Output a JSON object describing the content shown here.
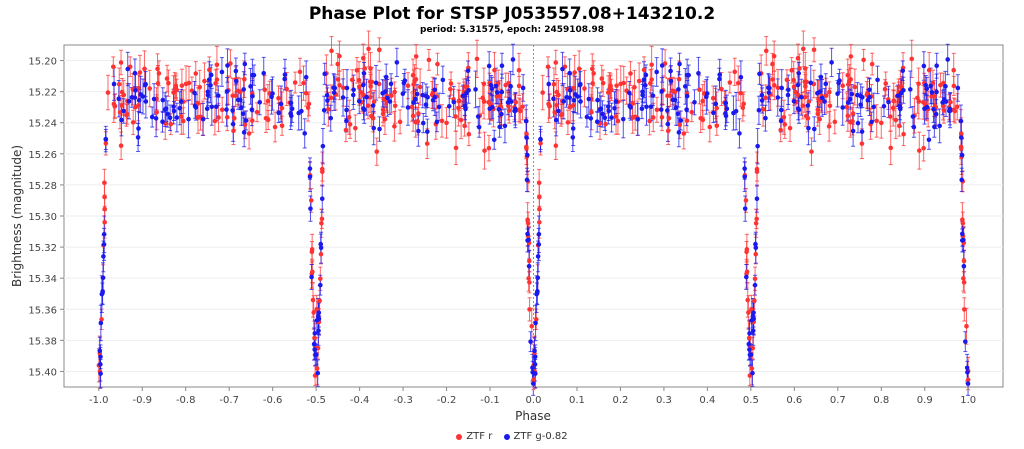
{
  "chart_data": {
    "type": "scatter",
    "title": "Phase Plot for STSP J053557.08+143210.2",
    "subtitle": "period: 5.31575, epoch: 2459108.98",
    "xlabel": "Phase",
    "ylabel": "Brightness (magnitude)",
    "xlim": [
      -1.08,
      1.08
    ],
    "ylim": [
      15.41,
      15.19
    ],
    "y_inverted": true,
    "x_ticks": [
      "-1.0",
      "-0.9",
      "-0.8",
      "-0.7",
      "-0.6",
      "-0.5",
      "-0.4",
      "-0.3",
      "-0.2",
      "-0.1",
      "0.0",
      "0.1",
      "0.2",
      "0.3",
      "0.4",
      "0.5",
      "0.6",
      "0.7",
      "0.8",
      "0.9",
      "1.0"
    ],
    "y_ticks": [
      "15.20",
      "15.22",
      "15.24",
      "15.26",
      "15.28",
      "15.30",
      "15.32",
      "15.34",
      "15.36",
      "15.38",
      "15.40"
    ],
    "grid": true,
    "legend_position": "bottom",
    "model": {
      "baseline_mag": 15.225,
      "scatter_mag": 0.012,
      "primary_eclipse": {
        "phase": 0.0,
        "depth": 0.18,
        "half_width": 0.018
      },
      "secondary_eclipse": {
        "phase": 0.5,
        "depth": 0.17,
        "half_width": 0.018
      }
    },
    "series": [
      {
        "name": "ZTF r",
        "color": "#ff3333",
        "points_per_cycle": 260
      },
      {
        "name": "ZTF g-0.82",
        "color": "#1a1aee",
        "points_per_cycle": 220
      }
    ]
  },
  "legend": {
    "items": [
      {
        "label": "ZTF r",
        "color": "#ff3333"
      },
      {
        "label": "ZTF g-0.82",
        "color": "#1a1aee"
      }
    ]
  }
}
